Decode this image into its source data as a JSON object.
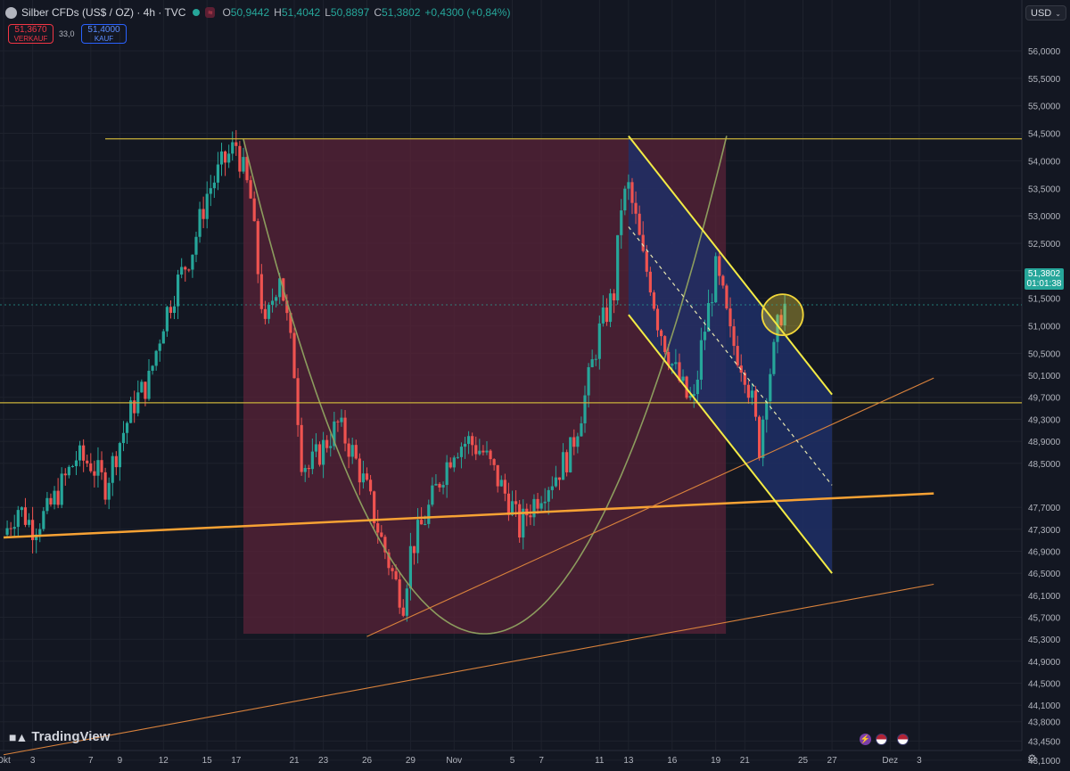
{
  "legend": {
    "symbol": "Silber CFDs (US$ / OZ) · 4h · TVC",
    "open_label": "O",
    "open": "50,9442",
    "high_label": "H",
    "high": "51,4042",
    "low_label": "L",
    "low": "50,8897",
    "close_label": "C",
    "close": "51,3802",
    "change": "+0,4300 (+0,84%)"
  },
  "trade": {
    "sell_price": "51,3670",
    "sell_label": "VERKAUF",
    "spread": "33,0",
    "buy_price": "51,4000",
    "buy_label": "KAUF"
  },
  "currency": "USD",
  "last_price": {
    "value": "51,3802",
    "countdown": "01:01:38"
  },
  "branding": "TradingView",
  "colors": {
    "background": "#131722",
    "up": "#26a69a",
    "down": "#ef5350",
    "horizontal_lines": "#c9b13a",
    "orange_support": "#f7a234",
    "orange_thin": "#d9823c",
    "cup_fill": "#5a2338",
    "cup_curve": "#8c9c5e",
    "channel_fill": "#1f2f66",
    "channel_lines": "#f3eb45",
    "circle_marker": "#f1d63a"
  },
  "icons": [
    "lightning-icon",
    "us-flag-icon",
    "settings-icon"
  ],
  "chart_data": {
    "type": "candlestick",
    "interval": "4h",
    "y_axis_labels": [
      "56,0000",
      "55,5000",
      "55,0000",
      "54,5000",
      "54,0000",
      "53,5000",
      "53,0000",
      "52,5000",
      "52,0000",
      "51,5000",
      "51,0000",
      "50,5000",
      "50,1000",
      "49,7000",
      "49,3000",
      "48,9000",
      "48,5000",
      "47,7000",
      "47,3000",
      "46,9000",
      "46,5000",
      "46,1000",
      "45,7000",
      "45,3000",
      "44,9000",
      "44,5000",
      "44,1000",
      "43,8000",
      "43,4500",
      "43,1000"
    ],
    "y_axis_values": [
      56.0,
      55.5,
      55.0,
      54.5,
      54.0,
      53.5,
      53.0,
      52.5,
      52.0,
      51.5,
      51.0,
      50.5,
      50.1,
      49.7,
      49.3,
      48.9,
      48.5,
      47.7,
      47.3,
      46.9,
      46.5,
      46.1,
      45.7,
      45.3,
      44.9,
      44.5,
      44.1,
      43.8,
      43.45,
      43.1
    ],
    "x_axis_labels": [
      {
        "label": "Okt",
        "day": 0
      },
      {
        "label": "3",
        "day": 2
      },
      {
        "label": "7",
        "day": 6
      },
      {
        "label": "9",
        "day": 8
      },
      {
        "label": "12",
        "day": 11
      },
      {
        "label": "15",
        "day": 14
      },
      {
        "label": "17",
        "day": 16
      },
      {
        "label": "21",
        "day": 20
      },
      {
        "label": "23",
        "day": 22
      },
      {
        "label": "26",
        "day": 25
      },
      {
        "label": "29",
        "day": 28
      },
      {
        "label": "Nov",
        "day": 31
      },
      {
        "label": "5",
        "day": 35
      },
      {
        "label": "7",
        "day": 37
      },
      {
        "label": "11",
        "day": 41
      },
      {
        "label": "13",
        "day": 43
      },
      {
        "label": "16",
        "day": 46
      },
      {
        "label": "19",
        "day": 49
      },
      {
        "label": "21",
        "day": 51
      },
      {
        "label": "25",
        "day": 55
      },
      {
        "label": "27",
        "day": 57
      },
      {
        "label": "Dez",
        "day": 61
      },
      {
        "label": "3",
        "day": 63
      }
    ],
    "price_path": [
      [
        0,
        47.2
      ],
      [
        1,
        47.7
      ],
      [
        2,
        47.35
      ],
      [
        3,
        47.6
      ],
      [
        4,
        48.1
      ],
      [
        5,
        48.6
      ],
      [
        6,
        48.5
      ],
      [
        7,
        48.1
      ],
      [
        8,
        48.9
      ],
      [
        9,
        49.6
      ],
      [
        10,
        50.0
      ],
      [
        11,
        51.1
      ],
      [
        12,
        51.8
      ],
      [
        13,
        52.4
      ],
      [
        14,
        53.4
      ],
      [
        15,
        53.9
      ],
      [
        16,
        54.3
      ],
      [
        17,
        53.3
      ],
      [
        17.5,
        52.0
      ],
      [
        18,
        50.9
      ],
      [
        18.5,
        51.5
      ],
      [
        19,
        52.0
      ],
      [
        20,
        50.2
      ],
      [
        20.5,
        48.6
      ],
      [
        21,
        48.4
      ],
      [
        22,
        48.8
      ],
      [
        23,
        49.2
      ],
      [
        24,
        48.7
      ],
      [
        25,
        48.0
      ],
      [
        26,
        47.1
      ],
      [
        27,
        46.3
      ],
      [
        27.5,
        46.0
      ],
      [
        28,
        46.9
      ],
      [
        29,
        47.5
      ],
      [
        30,
        48.2
      ],
      [
        31,
        48.8
      ],
      [
        32,
        48.9
      ],
      [
        33,
        48.7
      ],
      [
        34,
        48.2
      ],
      [
        35,
        47.7
      ],
      [
        35.5,
        47.3
      ],
      [
        36,
        47.6
      ],
      [
        37,
        48.0
      ],
      [
        38,
        48.3
      ],
      [
        39,
        48.7
      ],
      [
        40,
        49.7
      ],
      [
        41,
        50.9
      ],
      [
        42,
        51.6
      ],
      [
        42.5,
        53.2
      ],
      [
        43,
        53.5
      ],
      [
        43.5,
        52.9
      ],
      [
        44,
        52.2
      ],
      [
        44.5,
        51.8
      ],
      [
        45,
        51.1
      ],
      [
        46,
        50.3
      ],
      [
        47,
        49.7
      ],
      [
        47.5,
        49.6
      ],
      [
        48,
        50.6
      ],
      [
        49,
        52.0
      ],
      [
        49.5,
        51.5
      ],
      [
        50,
        50.8
      ],
      [
        51,
        50.2
      ],
      [
        51.5,
        49.6
      ],
      [
        52,
        48.8
      ],
      [
        52.5,
        49.9
      ],
      [
        53,
        50.5
      ],
      [
        53.4,
        51.2
      ],
      [
        53.8,
        51.38
      ]
    ],
    "annotations": {
      "resistance_line": 54.4,
      "neckline": 49.6,
      "cup_bottom": 45.4,
      "channel_upper": [
        [
          43,
          54.45
        ],
        [
          57,
          49.75
        ]
      ],
      "channel_lower": [
        [
          43,
          51.2
        ],
        [
          57,
          46.5
        ]
      ],
      "channel_mid": [
        [
          43,
          52.8
        ],
        [
          57,
          48.1
        ]
      ],
      "orange_support": [
        [
          0,
          47.15
        ],
        [
          64,
          47.95
        ]
      ],
      "orange_mid_trend": [
        [
          25,
          45.35
        ],
        [
          64,
          50.05
        ]
      ],
      "orange_long_trend": [
        [
          0,
          43.2
        ],
        [
          64,
          46.3
        ]
      ],
      "breakout_circle": [
        53.6,
        51.2
      ]
    }
  }
}
